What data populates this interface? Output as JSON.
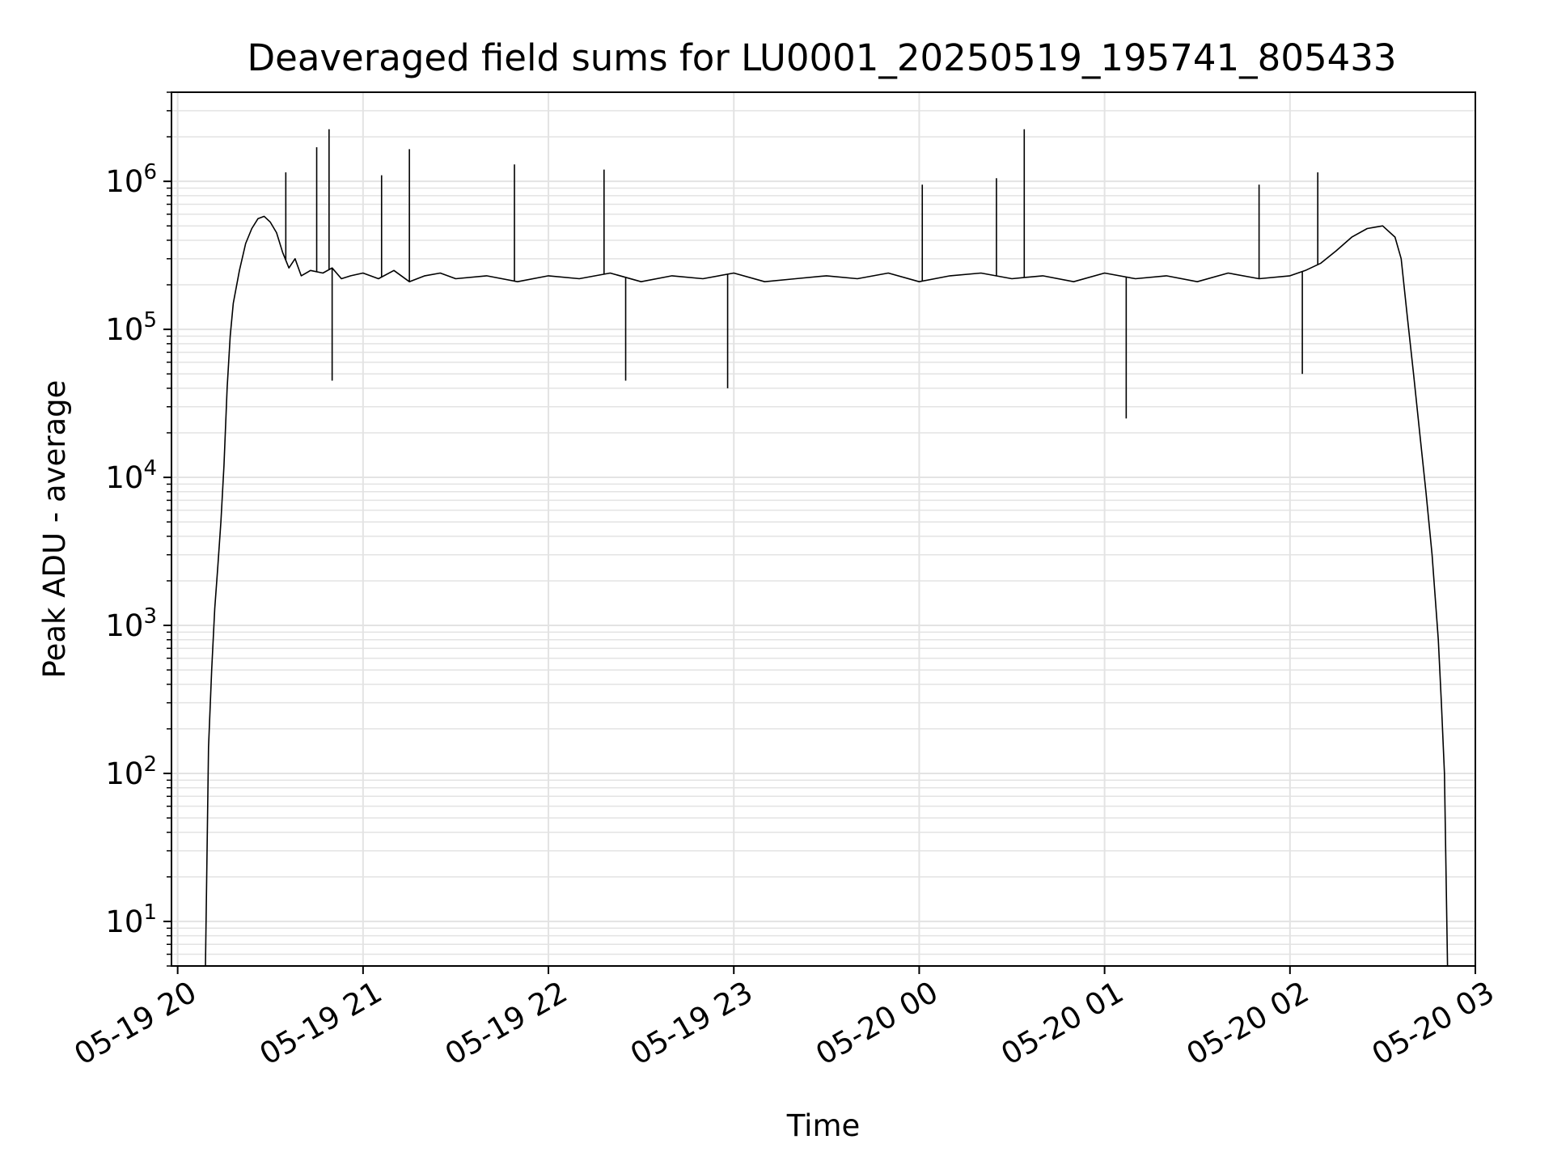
{
  "chart_data": {
    "type": "line",
    "title": "Deaveraged field sums for LU0001_20250519_195741_805433",
    "xlabel": "Time",
    "ylabel": "Peak ADU - average",
    "yscale": "log",
    "grid": true,
    "line_color": "#000000",
    "grid_color": "#e3e3e3",
    "xlim": [
      "2025-05-19 19:58",
      "2025-05-20 03:00"
    ],
    "ylim": [
      5,
      4000000
    ],
    "x_ticks": [
      "05-19 20",
      "05-19 21",
      "05-19 22",
      "05-19 23",
      "05-20 00",
      "05-20 01",
      "05-20 02",
      "05-20 03"
    ],
    "y_ticks": [
      {
        "base": "10",
        "exp": "1",
        "value": 10
      },
      {
        "base": "10",
        "exp": "2",
        "value": 100
      },
      {
        "base": "10",
        "exp": "3",
        "value": 1000
      },
      {
        "base": "10",
        "exp": "4",
        "value": 10000
      },
      {
        "base": "10",
        "exp": "5",
        "value": 100000
      },
      {
        "base": "10",
        "exp": "6",
        "value": 1000000
      }
    ],
    "series": [
      {
        "x": [
          "2025-05-19 20:09",
          "2025-05-19 20:10",
          "2025-05-19 20:11",
          "2025-05-19 20:12",
          "2025-05-19 20:13",
          "2025-05-19 20:14",
          "2025-05-19 20:15",
          "2025-05-19 20:16",
          "2025-05-19 20:17",
          "2025-05-19 20:18",
          "2025-05-19 20:20",
          "2025-05-19 20:22",
          "2025-05-19 20:24",
          "2025-05-19 20:26",
          "2025-05-19 20:28",
          "2025-05-19 20:30",
          "2025-05-19 20:32",
          "2025-05-19 20:34",
          "2025-05-19 20:36",
          "2025-05-19 20:38",
          "2025-05-19 20:40",
          "2025-05-19 20:43",
          "2025-05-19 20:47",
          "2025-05-19 20:50",
          "2025-05-19 20:53",
          "2025-05-19 20:56",
          "2025-05-19 21:00",
          "2025-05-19 21:05",
          "2025-05-19 21:10",
          "2025-05-19 21:15",
          "2025-05-19 21:20",
          "2025-05-19 21:25",
          "2025-05-19 21:30",
          "2025-05-19 21:40",
          "2025-05-19 21:50",
          "2025-05-19 22:00",
          "2025-05-19 22:10",
          "2025-05-19 22:20",
          "2025-05-19 22:30",
          "2025-05-19 22:40",
          "2025-05-19 22:50",
          "2025-05-19 23:00",
          "2025-05-19 23:10",
          "2025-05-19 23:20",
          "2025-05-19 23:30",
          "2025-05-19 23:40",
          "2025-05-19 23:50",
          "2025-05-20 00:00",
          "2025-05-20 00:10",
          "2025-05-20 00:20",
          "2025-05-20 00:30",
          "2025-05-20 00:40",
          "2025-05-20 00:50",
          "2025-05-20 01:00",
          "2025-05-20 01:10",
          "2025-05-20 01:20",
          "2025-05-20 01:30",
          "2025-05-20 01:40",
          "2025-05-20 01:50",
          "2025-05-20 02:00",
          "2025-05-20 02:05",
          "2025-05-20 02:10",
          "2025-05-20 02:15",
          "2025-05-20 02:20",
          "2025-05-20 02:25",
          "2025-05-20 02:30",
          "2025-05-20 02:34",
          "2025-05-20 02:36",
          "2025-05-20 02:38",
          "2025-05-20 02:40",
          "2025-05-20 02:42",
          "2025-05-20 02:44",
          "2025-05-20 02:46",
          "2025-05-20 02:48",
          "2025-05-20 02:49",
          "2025-05-20 02:50",
          "2025-05-20 02:51"
        ],
        "values": [
          5,
          150,
          500,
          1300,
          2500,
          5000,
          12000,
          40000,
          90000,
          150000,
          250000,
          380000,
          480000,
          560000,
          580000,
          530000,
          450000,
          330000,
          260000,
          300000,
          230000,
          250000,
          240000,
          260000,
          220000,
          230000,
          240000,
          220000,
          250000,
          210000,
          230000,
          240000,
          220000,
          230000,
          210000,
          230000,
          220000,
          240000,
          210000,
          230000,
          220000,
          240000,
          210000,
          220000,
          230000,
          220000,
          240000,
          210000,
          230000,
          240000,
          220000,
          230000,
          210000,
          240000,
          220000,
          230000,
          210000,
          240000,
          220000,
          230000,
          250000,
          280000,
          340000,
          420000,
          480000,
          500000,
          420000,
          300000,
          120000,
          50000,
          20000,
          8000,
          3000,
          800,
          300,
          100,
          5
        ],
        "spikes": [
          {
            "x": "2025-05-19 20:35",
            "value": 1150000
          },
          {
            "x": "2025-05-19 20:45",
            "value": 1700000
          },
          {
            "x": "2025-05-19 20:49",
            "value": 2250000
          },
          {
            "x": "2025-05-19 20:50",
            "value": 45000
          },
          {
            "x": "2025-05-19 21:06",
            "value": 1100000
          },
          {
            "x": "2025-05-19 21:15",
            "value": 1650000
          },
          {
            "x": "2025-05-19 21:49",
            "value": 1300000
          },
          {
            "x": "2025-05-19 22:18",
            "value": 1200000
          },
          {
            "x": "2025-05-19 22:25",
            "value": 45000
          },
          {
            "x": "2025-05-19 22:58",
            "value": 40000
          },
          {
            "x": "2025-05-20 00:01",
            "value": 950000
          },
          {
            "x": "2025-05-20 00:25",
            "value": 1050000
          },
          {
            "x": "2025-05-20 00:34",
            "value": 2250000
          },
          {
            "x": "2025-05-20 01:07",
            "value": 25000
          },
          {
            "x": "2025-05-20 01:50",
            "value": 950000
          },
          {
            "x": "2025-05-20 02:04",
            "value": 50000
          },
          {
            "x": "2025-05-20 02:09",
            "value": 1150000
          }
        ]
      }
    ]
  }
}
